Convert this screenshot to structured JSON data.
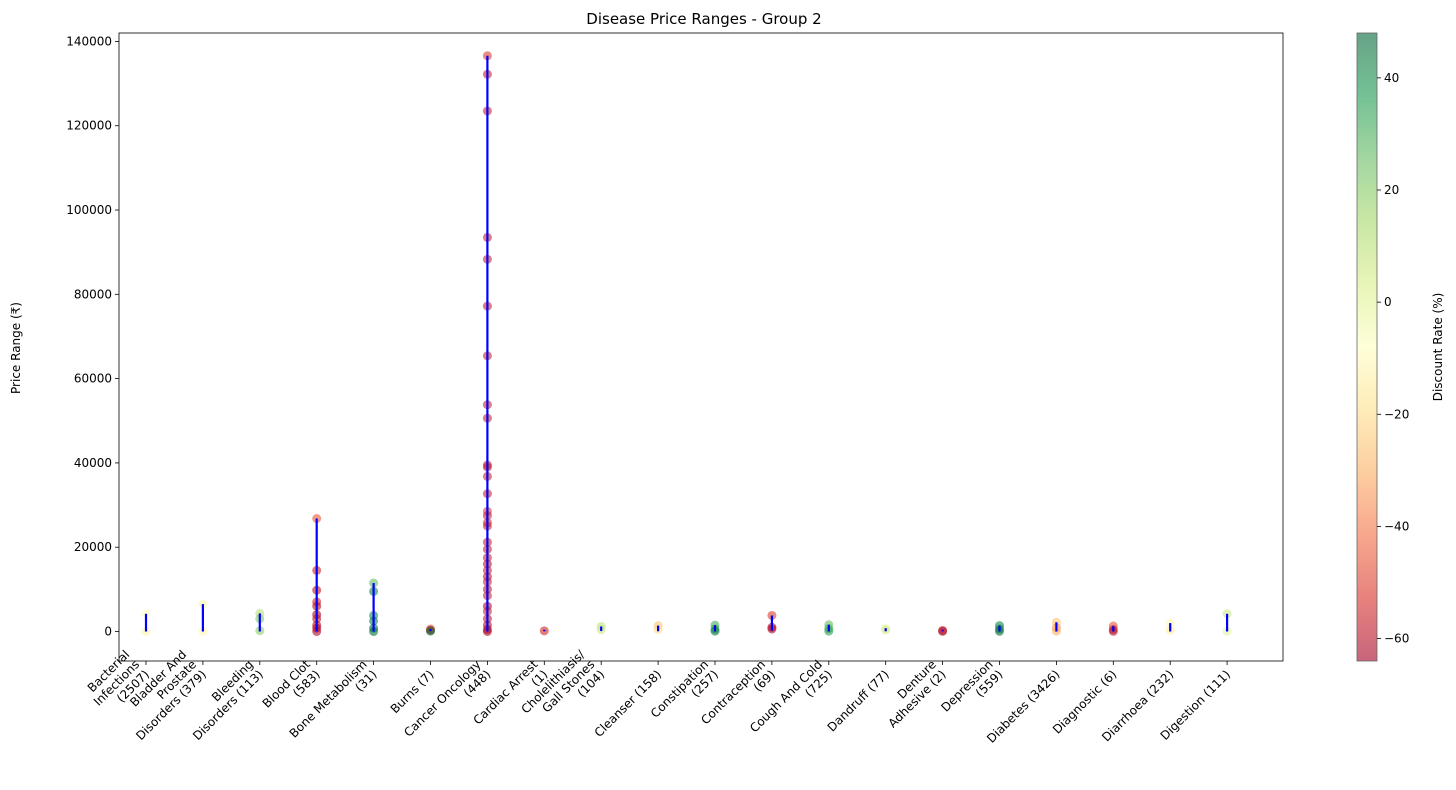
{
  "chart_data": {
    "type": "scatter",
    "title": "Disease Price Ranges - Group 2",
    "xlabel": "",
    "ylabel": "Price Range (₹)",
    "ylim": [
      -7000,
      142000
    ],
    "yticks": [
      0,
      20000,
      40000,
      60000,
      80000,
      100000,
      120000,
      140000
    ],
    "ytick_labels": [
      "0",
      "20000",
      "40000",
      "60000",
      "80000",
      "100000",
      "120000",
      "140000"
    ],
    "grid": false,
    "range_line_color": "#0000ff",
    "categories": [
      "Bacterial Infections (2507)",
      "Bladder And Prostate Disorders (379)",
      "Bleeding Disorders (113)",
      "Blood Clot (583)",
      "Bone Metabolism (31)",
      "Burns (7)",
      "Cancer Oncology (448)",
      "Cardiac Arrest (1)",
      "Cholelithiasis/ Gall Stones (104)",
      "Cleanser (158)",
      "Constipation (257)",
      "Contraception (69)",
      "Cough And Cold (725)",
      "Dandruff (77)",
      "Denture Adhesive (2)",
      "Depression (559)",
      "Diabetes (3426)",
      "Diagnostic (6)",
      "Diarrhoea (232)",
      "Digestion (111)"
    ],
    "tick_labels": [
      [
        "Bacterial",
        "Infections",
        "(2507)"
      ],
      [
        "Bladder And",
        "Prostate",
        "Disorders (379)"
      ],
      [
        "Bleeding",
        "Disorders (113)"
      ],
      [
        "Blood Clot",
        "(583)"
      ],
      [
        "Bone Metabolism",
        "(31)"
      ],
      [
        "Burns (7)"
      ],
      [
        "Cancer Oncology",
        "(448)"
      ],
      [
        "Cardiac Arrest",
        "(1)"
      ],
      [
        "Cholelithiasis/",
        "Gall Stones",
        "(104)"
      ],
      [
        "Cleanser (158)"
      ],
      [
        "Constipation",
        "(257)"
      ],
      [
        "Contraception",
        "(69)"
      ],
      [
        "Cough And Cold",
        "(725)"
      ],
      [
        "Dandruff (77)"
      ],
      [
        "Denture",
        "Adhesive (2)"
      ],
      [
        "Depression",
        "(559)"
      ],
      [
        "Diabetes (3426)"
      ],
      [
        "Diagnostic (6)"
      ],
      [
        "Diarrhoea (232)"
      ],
      [
        "Digestion (111)"
      ]
    ],
    "ranges": [
      {
        "min": 0,
        "max": 4200
      },
      {
        "min": 0,
        "max": 6500
      },
      {
        "min": 0,
        "max": 4300
      },
      {
        "min": 0,
        "max": 26800
      },
      {
        "min": 0,
        "max": 11500
      },
      {
        "min": 100,
        "max": 600
      },
      {
        "min": 0,
        "max": 136600
      },
      {
        "min": 50,
        "max": 200
      },
      {
        "min": 100,
        "max": 1200
      },
      {
        "min": 50,
        "max": 1400
      },
      {
        "min": 0,
        "max": 1500
      },
      {
        "min": 200,
        "max": 3800
      },
      {
        "min": 0,
        "max": 1600
      },
      {
        "min": 50,
        "max": 800
      },
      {
        "min": 50,
        "max": 300
      },
      {
        "min": 0,
        "max": 1400
      },
      {
        "min": 0,
        "max": 2200
      },
      {
        "min": 0,
        "max": 1300
      },
      {
        "min": 0,
        "max": 2000
      },
      {
        "min": 0,
        "max": 4200
      }
    ],
    "points": [
      {
        "cat": 0,
        "y": 4200,
        "d": -8
      },
      {
        "cat": 0,
        "y": 0,
        "d": -12
      },
      {
        "cat": 1,
        "y": 6500,
        "d": -5
      },
      {
        "cat": 1,
        "y": 0,
        "d": -10
      },
      {
        "cat": 2,
        "y": 4300,
        "d": 10
      },
      {
        "cat": 2,
        "y": 3000,
        "d": 20
      },
      {
        "cat": 2,
        "y": 200,
        "d": 18
      },
      {
        "cat": 3,
        "y": 26800,
        "d": -45
      },
      {
        "cat": 3,
        "y": 14500,
        "d": -55
      },
      {
        "cat": 3,
        "y": 9800,
        "d": -58
      },
      {
        "cat": 3,
        "y": 7000,
        "d": -55
      },
      {
        "cat": 3,
        "y": 6000,
        "d": -60
      },
      {
        "cat": 3,
        "y": 4000,
        "d": -62
      },
      {
        "cat": 3,
        "y": 3000,
        "d": -58
      },
      {
        "cat": 3,
        "y": 1500,
        "d": -60
      },
      {
        "cat": 3,
        "y": 800,
        "d": -62
      },
      {
        "cat": 3,
        "y": 0,
        "d": -62
      },
      {
        "cat": 4,
        "y": 11500,
        "d": 25
      },
      {
        "cat": 4,
        "y": 9500,
        "d": 40
      },
      {
        "cat": 4,
        "y": 3800,
        "d": 38
      },
      {
        "cat": 4,
        "y": 2500,
        "d": 42
      },
      {
        "cat": 4,
        "y": 800,
        "d": 45
      },
      {
        "cat": 4,
        "y": 0,
        "d": 46
      },
      {
        "cat": 5,
        "y": 600,
        "d": -45
      },
      {
        "cat": 5,
        "y": 300,
        "d": -60
      },
      {
        "cat": 5,
        "y": 100,
        "d": 46
      },
      {
        "cat": 6,
        "y": 136600,
        "d": -50
      },
      {
        "cat": 6,
        "y": 132200,
        "d": -55
      },
      {
        "cat": 6,
        "y": 123500,
        "d": -55
      },
      {
        "cat": 6,
        "y": 93500,
        "d": -55
      },
      {
        "cat": 6,
        "y": 88300,
        "d": -55
      },
      {
        "cat": 6,
        "y": 77200,
        "d": -55
      },
      {
        "cat": 6,
        "y": 65400,
        "d": -55
      },
      {
        "cat": 6,
        "y": 53800,
        "d": -55
      },
      {
        "cat": 6,
        "y": 50600,
        "d": -55
      },
      {
        "cat": 6,
        "y": 39500,
        "d": -55
      },
      {
        "cat": 6,
        "y": 39000,
        "d": -58
      },
      {
        "cat": 6,
        "y": 36800,
        "d": -55
      },
      {
        "cat": 6,
        "y": 32700,
        "d": -55
      },
      {
        "cat": 6,
        "y": 28500,
        "d": -50
      },
      {
        "cat": 6,
        "y": 27500,
        "d": -55
      },
      {
        "cat": 6,
        "y": 25800,
        "d": -55
      },
      {
        "cat": 6,
        "y": 25000,
        "d": -55
      },
      {
        "cat": 6,
        "y": 21200,
        "d": -55
      },
      {
        "cat": 6,
        "y": 19500,
        "d": -55
      },
      {
        "cat": 6,
        "y": 17500,
        "d": -55
      },
      {
        "cat": 6,
        "y": 16000,
        "d": -58
      },
      {
        "cat": 6,
        "y": 14500,
        "d": -55
      },
      {
        "cat": 6,
        "y": 13000,
        "d": -58
      },
      {
        "cat": 6,
        "y": 11800,
        "d": -55
      },
      {
        "cat": 6,
        "y": 10000,
        "d": -58
      },
      {
        "cat": 6,
        "y": 8500,
        "d": -55
      },
      {
        "cat": 6,
        "y": 6000,
        "d": -60
      },
      {
        "cat": 6,
        "y": 4800,
        "d": -55
      },
      {
        "cat": 6,
        "y": 3000,
        "d": -58
      },
      {
        "cat": 6,
        "y": 1500,
        "d": -60
      },
      {
        "cat": 6,
        "y": 500,
        "d": -62
      },
      {
        "cat": 6,
        "y": 0,
        "d": -62
      },
      {
        "cat": 7,
        "y": 150,
        "d": -55
      },
      {
        "cat": 8,
        "y": 1200,
        "d": 10
      },
      {
        "cat": 8,
        "y": 400,
        "d": 5
      },
      {
        "cat": 9,
        "y": 1400,
        "d": -25
      },
      {
        "cat": 9,
        "y": 500,
        "d": -20
      },
      {
        "cat": 10,
        "y": 1500,
        "d": 30
      },
      {
        "cat": 10,
        "y": 600,
        "d": 35
      },
      {
        "cat": 10,
        "y": 100,
        "d": 44
      },
      {
        "cat": 11,
        "y": 3800,
        "d": -50
      },
      {
        "cat": 11,
        "y": 1000,
        "d": -60
      },
      {
        "cat": 11,
        "y": 600,
        "d": -62
      },
      {
        "cat": 12,
        "y": 1600,
        "d": 25
      },
      {
        "cat": 12,
        "y": 700,
        "d": 30
      },
      {
        "cat": 12,
        "y": 100,
        "d": 35
      },
      {
        "cat": 13,
        "y": 800,
        "d": -5
      },
      {
        "cat": 13,
        "y": 400,
        "d": 5
      },
      {
        "cat": 14,
        "y": 250,
        "d": -55
      },
      {
        "cat": 14,
        "y": 50,
        "d": -62
      },
      {
        "cat": 15,
        "y": 1400,
        "d": 40
      },
      {
        "cat": 15,
        "y": 600,
        "d": 42
      },
      {
        "cat": 15,
        "y": 50,
        "d": 46
      },
      {
        "cat": 16,
        "y": 2200,
        "d": -25
      },
      {
        "cat": 16,
        "y": 900,
        "d": -35
      },
      {
        "cat": 16,
        "y": 100,
        "d": -30
      },
      {
        "cat": 17,
        "y": 1300,
        "d": -45
      },
      {
        "cat": 17,
        "y": 500,
        "d": -55
      },
      {
        "cat": 17,
        "y": 50,
        "d": -60
      },
      {
        "cat": 18,
        "y": 2000,
        "d": -10
      },
      {
        "cat": 18,
        "y": 300,
        "d": -15
      },
      {
        "cat": 19,
        "y": 4200,
        "d": 5
      },
      {
        "cat": 19,
        "y": 100,
        "d": 0
      }
    ],
    "colorbar": {
      "label": "Discount Rate (%)",
      "cmap": "RdYlGn",
      "range": [
        -64,
        48
      ],
      "ticks": [
        -60,
        -40,
        -20,
        0,
        20,
        40
      ],
      "tick_labels": [
        "−60",
        "−40",
        "−20",
        "0",
        "20",
        "40"
      ]
    }
  }
}
